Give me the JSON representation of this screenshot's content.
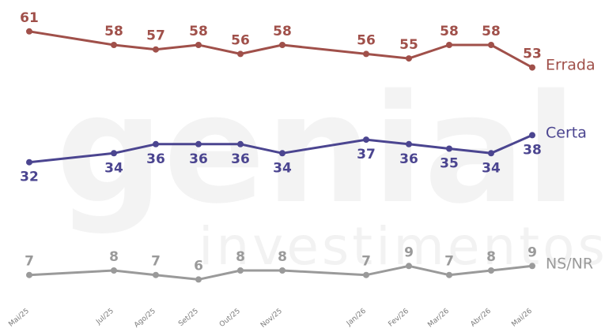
{
  "chart_data": {
    "type": "line",
    "title": "",
    "xlabel": "",
    "ylabel": "",
    "categories": [
      "Mai/25",
      "Jul/25",
      "Ago/25",
      "Set/25",
      "Out/25",
      "Nov/25",
      "Jan/26",
      "Fev/26",
      "Mar/26",
      "Abr/26",
      "Mai/26"
    ],
    "ylim": [
      0,
      65
    ],
    "grid": false,
    "legend": "right-end-labels",
    "series": [
      {
        "name": "Errada",
        "color": "#a0504a",
        "values": [
          61,
          58,
          57,
          58,
          56,
          58,
          56,
          55,
          58,
          58,
          53
        ]
      },
      {
        "name": "Certa",
        "color": "#4b4590",
        "values": [
          32,
          34,
          36,
          36,
          36,
          34,
          37,
          36,
          35,
          34,
          38
        ]
      },
      {
        "name": "NS/NR",
        "color": "#9a9a9a",
        "values": [
          7,
          8,
          7,
          6,
          8,
          8,
          7,
          9,
          7,
          8,
          9
        ]
      }
    ]
  },
  "watermark": {
    "brand": "genial",
    "subtitle": "investimentos"
  }
}
